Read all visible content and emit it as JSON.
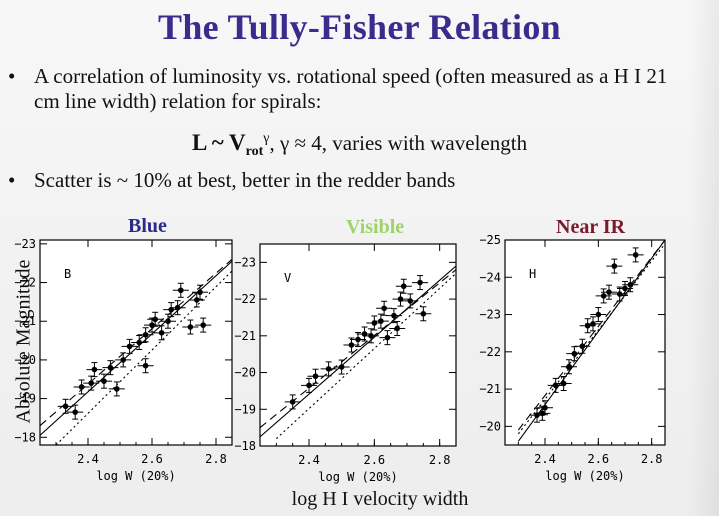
{
  "slide": {
    "title": "The Tully-Fisher Relation",
    "bullets": [
      {
        "symbol": "•",
        "text": "A correlation of luminosity vs. rotational speed (often measured as a H I 21 cm line width) relation for spirals:"
      },
      {
        "symbol": "•",
        "text": "Scatter is ~ 10% at best, better in the redder bands"
      }
    ],
    "formula": {
      "lhs": "L ~ V",
      "sub": "rot",
      "sup": "γ",
      "rest": ", γ ≈ 4, varies with wavelength"
    },
    "y_axis_label": "Absolute Magnitude",
    "x_axis_label": "log H I velocity width",
    "colors": {
      "title": "#3a2b8c",
      "blue": "#2b2a8a",
      "visible": "#9fd36a",
      "near_ir": "#7a1a2e"
    }
  },
  "chart_data": [
    {
      "type": "scatter",
      "title": "Blue",
      "band_label": "B",
      "xlabel": "log W (20%)",
      "xlim": [
        2.25,
        2.85
      ],
      "ylim": [
        -17.8,
        -23.1
      ],
      "x_ticks": [
        2.4,
        2.6,
        2.8
      ],
      "y_ticks": [
        -18,
        -19,
        -20,
        -21,
        -22,
        -23
      ],
      "points": [
        {
          "x": 2.33,
          "y": -18.8
        },
        {
          "x": 2.36,
          "y": -18.65
        },
        {
          "x": 2.38,
          "y": -19.3
        },
        {
          "x": 2.41,
          "y": -19.4
        },
        {
          "x": 2.42,
          "y": -19.75
        },
        {
          "x": 2.45,
          "y": -19.45
        },
        {
          "x": 2.47,
          "y": -19.8
        },
        {
          "x": 2.49,
          "y": -19.25
        },
        {
          "x": 2.51,
          "y": -20.0
        },
        {
          "x": 2.53,
          "y": -20.35
        },
        {
          "x": 2.56,
          "y": -20.45
        },
        {
          "x": 2.58,
          "y": -19.85
        },
        {
          "x": 2.58,
          "y": -20.65
        },
        {
          "x": 2.6,
          "y": -20.9
        },
        {
          "x": 2.61,
          "y": -21.05
        },
        {
          "x": 2.63,
          "y": -20.7
        },
        {
          "x": 2.65,
          "y": -21.0
        },
        {
          "x": 2.66,
          "y": -21.3
        },
        {
          "x": 2.68,
          "y": -21.35
        },
        {
          "x": 2.69,
          "y": -21.8
        },
        {
          "x": 2.72,
          "y": -20.85
        },
        {
          "x": 2.74,
          "y": -21.55
        },
        {
          "x": 2.75,
          "y": -21.75
        },
        {
          "x": 2.76,
          "y": -20.9
        }
      ],
      "fits": [
        {
          "style": "solid",
          "x": [
            2.25,
            2.85
          ],
          "y": [
            -18.05,
            -22.55
          ]
        },
        {
          "style": "dashed",
          "x": [
            2.25,
            2.85
          ],
          "y": [
            -18.3,
            -22.6
          ]
        },
        {
          "style": "dotted",
          "x": [
            2.3,
            2.85
          ],
          "y": [
            -17.8,
            -22.3
          ]
        }
      ]
    },
    {
      "type": "scatter",
      "title": "Visible",
      "band_label": "V",
      "xlabel": "log W (20%)",
      "xlim": [
        2.25,
        2.85
      ],
      "ylim": [
        -18.0,
        -23.5
      ],
      "x_ticks": [
        2.4,
        2.6,
        2.8
      ],
      "y_ticks": [
        -18,
        -19,
        -20,
        -21,
        -22,
        -23
      ],
      "points": [
        {
          "x": 2.35,
          "y": -19.2
        },
        {
          "x": 2.4,
          "y": -19.65
        },
        {
          "x": 2.42,
          "y": -19.9
        },
        {
          "x": 2.46,
          "y": -20.1
        },
        {
          "x": 2.5,
          "y": -20.15
        },
        {
          "x": 2.53,
          "y": -20.75
        },
        {
          "x": 2.55,
          "y": -20.9
        },
        {
          "x": 2.57,
          "y": -21.05
        },
        {
          "x": 2.59,
          "y": -21.0
        },
        {
          "x": 2.6,
          "y": -21.35
        },
        {
          "x": 2.62,
          "y": -21.4
        },
        {
          "x": 2.63,
          "y": -21.75
        },
        {
          "x": 2.64,
          "y": -20.95
        },
        {
          "x": 2.66,
          "y": -21.55
        },
        {
          "x": 2.67,
          "y": -21.2
        },
        {
          "x": 2.68,
          "y": -22.0
        },
        {
          "x": 2.69,
          "y": -22.35
        },
        {
          "x": 2.71,
          "y": -21.95
        },
        {
          "x": 2.74,
          "y": -22.45
        },
        {
          "x": 2.75,
          "y": -21.6
        }
      ],
      "fits": [
        {
          "style": "solid",
          "x": [
            2.25,
            2.85
          ],
          "y": [
            -18.25,
            -22.9
          ]
        },
        {
          "style": "dashed",
          "x": [
            2.25,
            2.85
          ],
          "y": [
            -18.5,
            -22.8
          ]
        },
        {
          "style": "dotted",
          "x": [
            2.3,
            2.85
          ],
          "y": [
            -18.2,
            -22.7
          ]
        }
      ]
    },
    {
      "type": "scatter",
      "title": "Near IR",
      "band_label": "H",
      "xlabel": "log W (20%)",
      "xlim": [
        2.25,
        2.85
      ],
      "ylim": [
        -19.5,
        -25.0
      ],
      "x_ticks": [
        2.4,
        2.6,
        2.8
      ],
      "y_ticks": [
        -20,
        -21,
        -22,
        -23,
        -24,
        -25
      ],
      "points": [
        {
          "x": 2.37,
          "y": -20.3
        },
        {
          "x": 2.39,
          "y": -20.35
        },
        {
          "x": 2.4,
          "y": -20.5
        },
        {
          "x": 2.44,
          "y": -21.1
        },
        {
          "x": 2.47,
          "y": -21.15
        },
        {
          "x": 2.49,
          "y": -21.6
        },
        {
          "x": 2.51,
          "y": -21.95
        },
        {
          "x": 2.54,
          "y": -22.15
        },
        {
          "x": 2.56,
          "y": -22.7
        },
        {
          "x": 2.58,
          "y": -22.75
        },
        {
          "x": 2.6,
          "y": -23.0
        },
        {
          "x": 2.62,
          "y": -23.5
        },
        {
          "x": 2.64,
          "y": -23.6
        },
        {
          "x": 2.66,
          "y": -24.3
        },
        {
          "x": 2.68,
          "y": -23.55
        },
        {
          "x": 2.7,
          "y": -23.7
        },
        {
          "x": 2.72,
          "y": -23.8
        },
        {
          "x": 2.74,
          "y": -24.6
        }
      ],
      "fits": [
        {
          "style": "solid",
          "x": [
            2.3,
            2.85
          ],
          "y": [
            -19.6,
            -25.0
          ]
        },
        {
          "style": "dashed",
          "x": [
            2.3,
            2.85
          ],
          "y": [
            -19.9,
            -25.0
          ]
        },
        {
          "style": "dotted",
          "x": [
            2.3,
            2.85
          ],
          "y": [
            -19.8,
            -24.9
          ]
        }
      ]
    }
  ]
}
